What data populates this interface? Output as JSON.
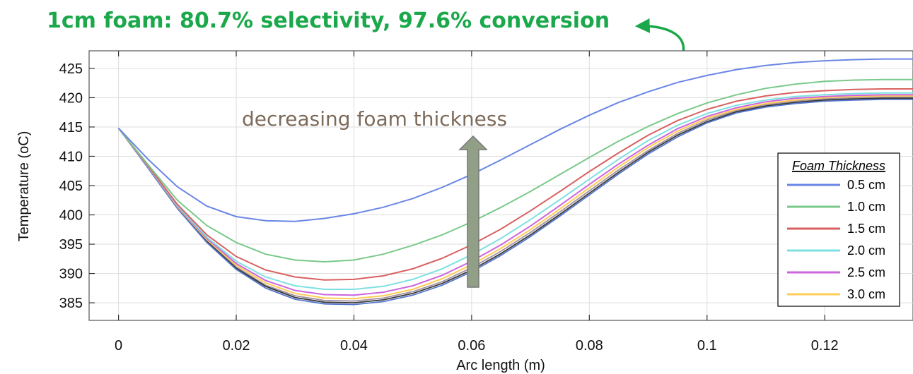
{
  "chart_data": {
    "type": "line",
    "title": "",
    "xlabel": "Arc length (m)",
    "ylabel": "Temperature (oC)",
    "xlim": [
      -0.005,
      0.135
    ],
    "ylim": [
      382,
      428
    ],
    "x_ticks": [
      0,
      0.02,
      0.04,
      0.06,
      0.08,
      0.1,
      0.12
    ],
    "x_tick_labels": [
      "0",
      "0.02",
      "0.04",
      "0.06",
      "0.08",
      "0.1",
      "0.12"
    ],
    "y_ticks": [
      385,
      390,
      395,
      400,
      405,
      410,
      415,
      420,
      425
    ],
    "grid": true,
    "legend_title": "Foam Thickness",
    "legend_position": "right",
    "annotations": {
      "top_note": "1cm foam: 80.7% selectivity, 97.6% conversion",
      "trend_note": "decreasing foam thickness"
    },
    "series": [
      {
        "name": "0.5 cm",
        "color": "#6a86e6",
        "x": [
          0,
          0.005,
          0.01,
          0.015,
          0.02,
          0.025,
          0.03,
          0.035,
          0.04,
          0.045,
          0.05,
          0.055,
          0.06,
          0.065,
          0.07,
          0.075,
          0.08,
          0.085,
          0.09,
          0.095,
          0.1,
          0.105,
          0.11,
          0.115,
          0.12,
          0.125,
          0.13,
          0.135
        ],
        "y": [
          414.8,
          409.5,
          404.8,
          401.5,
          399.7,
          399.0,
          398.9,
          399.4,
          400.2,
          401.3,
          402.8,
          404.7,
          406.9,
          409.4,
          412.0,
          414.6,
          417.0,
          419.2,
          421.0,
          422.6,
          423.8,
          424.8,
          425.5,
          426.0,
          426.3,
          426.5,
          426.6,
          426.6
        ]
      },
      {
        "name": "1.0 cm",
        "color": "#7ac98a",
        "x": [
          0,
          0.005,
          0.01,
          0.015,
          0.02,
          0.025,
          0.03,
          0.035,
          0.04,
          0.045,
          0.05,
          0.055,
          0.06,
          0.065,
          0.07,
          0.075,
          0.08,
          0.085,
          0.09,
          0.095,
          0.1,
          0.105,
          0.11,
          0.115,
          0.12,
          0.125,
          0.13,
          0.135
        ],
        "y": [
          414.8,
          408.6,
          402.5,
          398.2,
          395.3,
          393.3,
          392.3,
          392.0,
          392.3,
          393.3,
          394.8,
          396.6,
          398.8,
          401.3,
          404.0,
          406.9,
          409.8,
          412.6,
          415.1,
          417.3,
          419.1,
          420.5,
          421.6,
          422.3,
          422.8,
          423.0,
          423.1,
          423.1
        ]
      },
      {
        "name": "1.5 cm",
        "color": "#d96060",
        "x": [
          0,
          0.005,
          0.01,
          0.015,
          0.02,
          0.025,
          0.03,
          0.035,
          0.04,
          0.045,
          0.05,
          0.055,
          0.06,
          0.065,
          0.07,
          0.075,
          0.08,
          0.085,
          0.09,
          0.095,
          0.1,
          0.105,
          0.11,
          0.115,
          0.12,
          0.125,
          0.13,
          0.135
        ],
        "y": [
          414.8,
          408.4,
          401.8,
          396.6,
          392.9,
          390.6,
          389.4,
          388.9,
          389.0,
          389.6,
          390.8,
          392.6,
          394.9,
          397.6,
          400.7,
          404.0,
          407.4,
          410.6,
          413.6,
          416.1,
          418.0,
          419.4,
          420.3,
          420.9,
          421.2,
          421.4,
          421.5,
          421.5
        ]
      },
      {
        "name": "2.0 cm",
        "color": "#7ee0e0",
        "x": [
          0,
          0.005,
          0.01,
          0.015,
          0.02,
          0.025,
          0.03,
          0.035,
          0.04,
          0.045,
          0.05,
          0.055,
          0.06,
          0.065,
          0.07,
          0.075,
          0.08,
          0.085,
          0.09,
          0.095,
          0.1,
          0.105,
          0.11,
          0.115,
          0.12,
          0.125,
          0.13,
          0.135
        ],
        "y": [
          414.8,
          408.3,
          401.6,
          396.2,
          392.1,
          389.4,
          387.9,
          387.3,
          387.3,
          387.8,
          389.0,
          390.8,
          393.2,
          396.0,
          399.2,
          402.6,
          406.1,
          409.5,
          412.7,
          415.3,
          417.3,
          418.7,
          419.6,
          420.2,
          420.5,
          420.7,
          420.8,
          420.8
        ]
      },
      {
        "name": "2.5 cm",
        "color": "#cc66dd",
        "x": [
          0,
          0.005,
          0.01,
          0.015,
          0.02,
          0.025,
          0.03,
          0.035,
          0.04,
          0.045,
          0.05,
          0.055,
          0.06,
          0.065,
          0.07,
          0.075,
          0.08,
          0.085,
          0.09,
          0.095,
          0.1,
          0.105,
          0.11,
          0.115,
          0.12,
          0.125,
          0.13,
          0.135
        ],
        "y": [
          414.8,
          408.2,
          401.5,
          396.0,
          391.7,
          388.8,
          387.1,
          386.4,
          386.3,
          386.8,
          387.9,
          389.7,
          392.1,
          394.9,
          398.1,
          401.6,
          405.2,
          408.7,
          411.9,
          414.7,
          416.8,
          418.3,
          419.3,
          419.9,
          420.2,
          420.4,
          420.5,
          420.5
        ]
      },
      {
        "name": "3.0 cm",
        "color": "#ffcc55",
        "x": [
          0,
          0.005,
          0.01,
          0.015,
          0.02,
          0.025,
          0.03,
          0.035,
          0.04,
          0.045,
          0.05,
          0.055,
          0.06,
          0.065,
          0.07,
          0.075,
          0.08,
          0.085,
          0.09,
          0.095,
          0.1,
          0.105,
          0.11,
          0.115,
          0.12,
          0.125,
          0.13,
          0.135
        ],
        "y": [
          414.8,
          408.2,
          401.4,
          395.8,
          391.4,
          388.4,
          386.6,
          385.8,
          385.7,
          386.2,
          387.3,
          389.1,
          391.5,
          394.3,
          397.5,
          401.0,
          404.6,
          408.2,
          411.5,
          414.3,
          416.5,
          418.0,
          419.0,
          419.6,
          420.0,
          420.2,
          420.3,
          420.3
        ]
      }
    ],
    "additional_curves_no_legend": [
      {
        "color": "#a090a0",
        "x": [
          0,
          0.005,
          0.01,
          0.015,
          0.02,
          0.025,
          0.03,
          0.035,
          0.04,
          0.045,
          0.05,
          0.055,
          0.06,
          0.065,
          0.07,
          0.075,
          0.08,
          0.085,
          0.09,
          0.095,
          0.1,
          0.105,
          0.11,
          0.115,
          0.12,
          0.125,
          0.13,
          0.135
        ],
        "y": [
          414.8,
          408.1,
          401.3,
          395.6,
          391.1,
          388.0,
          386.2,
          385.4,
          385.3,
          385.8,
          386.9,
          388.6,
          391.0,
          393.8,
          397.0,
          400.5,
          404.1,
          407.7,
          411.0,
          413.9,
          416.2,
          417.8,
          418.8,
          419.4,
          419.8,
          420.0,
          420.1,
          420.1
        ]
      },
      {
        "color": "#3a3a3a",
        "x": [
          0,
          0.005,
          0.01,
          0.015,
          0.02,
          0.025,
          0.03,
          0.035,
          0.04,
          0.045,
          0.05,
          0.055,
          0.06,
          0.065,
          0.07,
          0.075,
          0.08,
          0.085,
          0.09,
          0.095,
          0.1,
          0.105,
          0.11,
          0.115,
          0.12,
          0.125,
          0.13,
          0.135
        ],
        "y": [
          414.8,
          408.1,
          401.2,
          395.5,
          390.9,
          387.8,
          385.9,
          385.1,
          385.0,
          385.5,
          386.6,
          388.3,
          390.6,
          393.4,
          396.6,
          400.1,
          403.7,
          407.3,
          410.7,
          413.6,
          415.9,
          417.6,
          418.6,
          419.2,
          419.6,
          419.8,
          419.9,
          419.9
        ]
      },
      {
        "color": "#5577cc",
        "x": [
          0,
          0.005,
          0.01,
          0.015,
          0.02,
          0.025,
          0.03,
          0.035,
          0.04,
          0.045,
          0.05,
          0.055,
          0.06,
          0.065,
          0.07,
          0.075,
          0.08,
          0.085,
          0.09,
          0.095,
          0.1,
          0.105,
          0.11,
          0.115,
          0.12,
          0.125,
          0.13,
          0.135
        ],
        "y": [
          414.8,
          408.0,
          401.1,
          395.3,
          390.7,
          387.5,
          385.6,
          384.8,
          384.7,
          385.2,
          386.3,
          388.0,
          390.3,
          393.1,
          396.3,
          399.8,
          403.4,
          407.0,
          410.4,
          413.3,
          415.7,
          417.4,
          418.4,
          419.0,
          419.4,
          419.6,
          419.7,
          419.7
        ]
      }
    ]
  }
}
